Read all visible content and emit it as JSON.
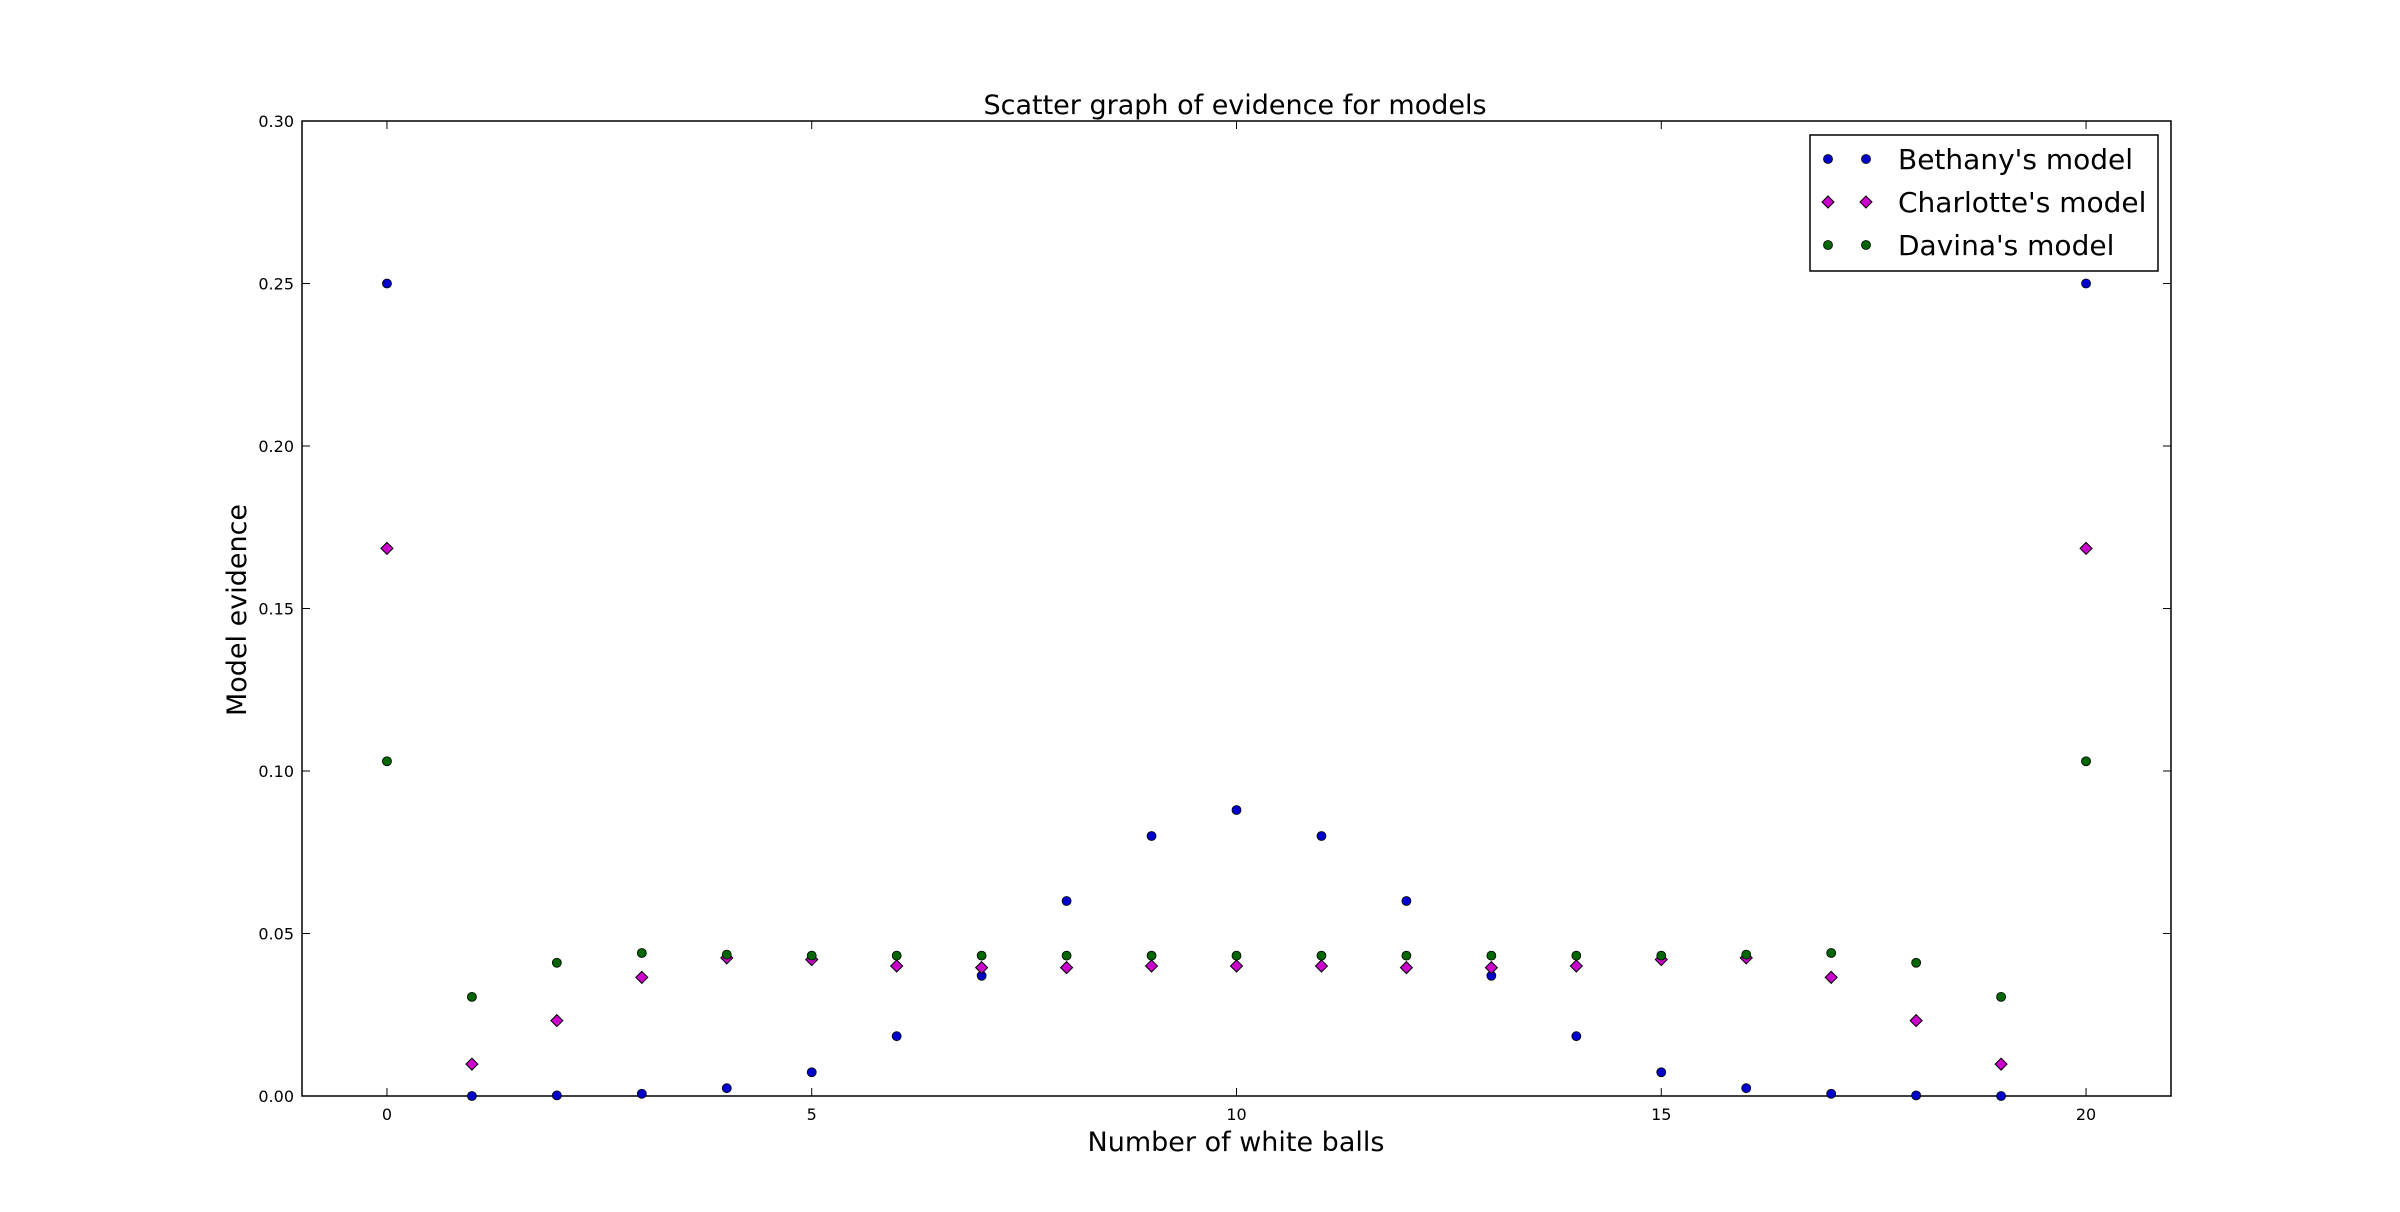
{
  "chart_data": {
    "type": "scatter",
    "title": "Scatter graph of evidence for models",
    "xlabel": "Number of white balls",
    "ylabel": "Model evidence",
    "xlim": [
      -1,
      21
    ],
    "ylim": [
      0,
      0.3
    ],
    "xticks": [
      0,
      5,
      10,
      15,
      20
    ],
    "xtick_labels": [
      "0",
      "5",
      "10",
      "15",
      "20"
    ],
    "yticks": [
      0,
      0.05,
      0.1,
      0.15,
      0.2,
      0.25,
      0.3
    ],
    "ytick_labels": [
      "0.00",
      "0.05",
      "0.10",
      "0.15",
      "0.20",
      "0.25",
      "0.30"
    ],
    "grid": false,
    "legend_position": "top-right",
    "x": [
      0,
      1,
      2,
      3,
      4,
      5,
      6,
      7,
      8,
      9,
      10,
      11,
      12,
      13,
      14,
      15,
      16,
      17,
      18,
      19,
      20
    ],
    "series": [
      {
        "name": "Bethany's model",
        "marker": "circle",
        "color": "#0000cc",
        "values": [
          0.25,
          0.0,
          0.0002,
          0.0007,
          0.0024,
          0.0073,
          0.0184,
          0.037,
          0.06,
          0.08,
          0.088,
          0.08,
          0.06,
          0.037,
          0.0184,
          0.0073,
          0.0024,
          0.0007,
          0.0002,
          0.0,
          0.25
        ]
      },
      {
        "name": "Charlotte's model",
        "marker": "diamond",
        "color": "#cc00cc",
        "values": [
          0.1685,
          0.0098,
          0.0232,
          0.0365,
          0.0425,
          0.042,
          0.04,
          0.0395,
          0.0395,
          0.04,
          0.04,
          0.04,
          0.0395,
          0.0395,
          0.04,
          0.042,
          0.0425,
          0.0365,
          0.0232,
          0.0098,
          0.1685
        ]
      },
      {
        "name": "Davina's model",
        "marker": "circle",
        "color": "#006600",
        "values": [
          0.103,
          0.0305,
          0.041,
          0.044,
          0.0435,
          0.0432,
          0.0432,
          0.0432,
          0.0432,
          0.0432,
          0.0432,
          0.0432,
          0.0432,
          0.0432,
          0.0432,
          0.0432,
          0.0435,
          0.044,
          0.041,
          0.0305,
          0.103
        ]
      }
    ]
  }
}
